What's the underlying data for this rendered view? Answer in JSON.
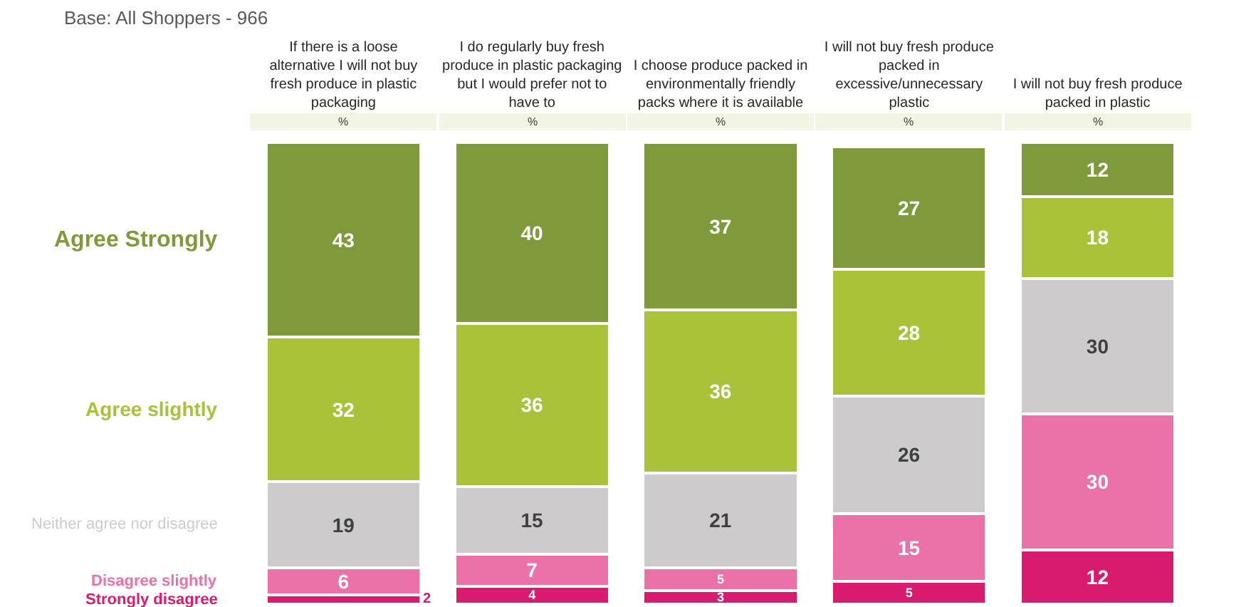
{
  "chart_data": {
    "type": "bar",
    "stacked": true,
    "data_labels": true,
    "legend": false,
    "categories": [
      "If there is a loose alternative I will not buy fresh produce in plastic packaging",
      "I do regularly buy fresh produce in plastic packaging but I would prefer not to have to",
      "I choose produce packed in environmentally friendly packs where it is available",
      "I will not buy fresh produce packed in excessive/unnecessary plastic",
      "I will not buy fresh produce packed in plastic"
    ],
    "series": [
      {
        "name": "Strongly disagree",
        "color": "#d81b6f",
        "values": [
          2,
          4,
          3,
          5,
          12
        ]
      },
      {
        "name": "Disagree slightly",
        "color": "#ea72a8",
        "values": [
          6,
          7,
          5,
          15,
          30
        ]
      },
      {
        "name": "Neither agree nor disagree",
        "color": "#cdcbcc",
        "values": [
          19,
          15,
          21,
          26,
          30
        ]
      },
      {
        "name": "Agree slightly",
        "color": "#a9c23a",
        "values": [
          32,
          36,
          36,
          28,
          18
        ]
      },
      {
        "name": "Agree Strongly",
        "color": "#7f9a3a",
        "values": [
          43,
          40,
          37,
          27,
          12
        ]
      }
    ],
    "annotations": [
      "Base: All Shoppers - 966",
      "%",
      "%",
      "%",
      "%",
      "%"
    ]
  }
}
